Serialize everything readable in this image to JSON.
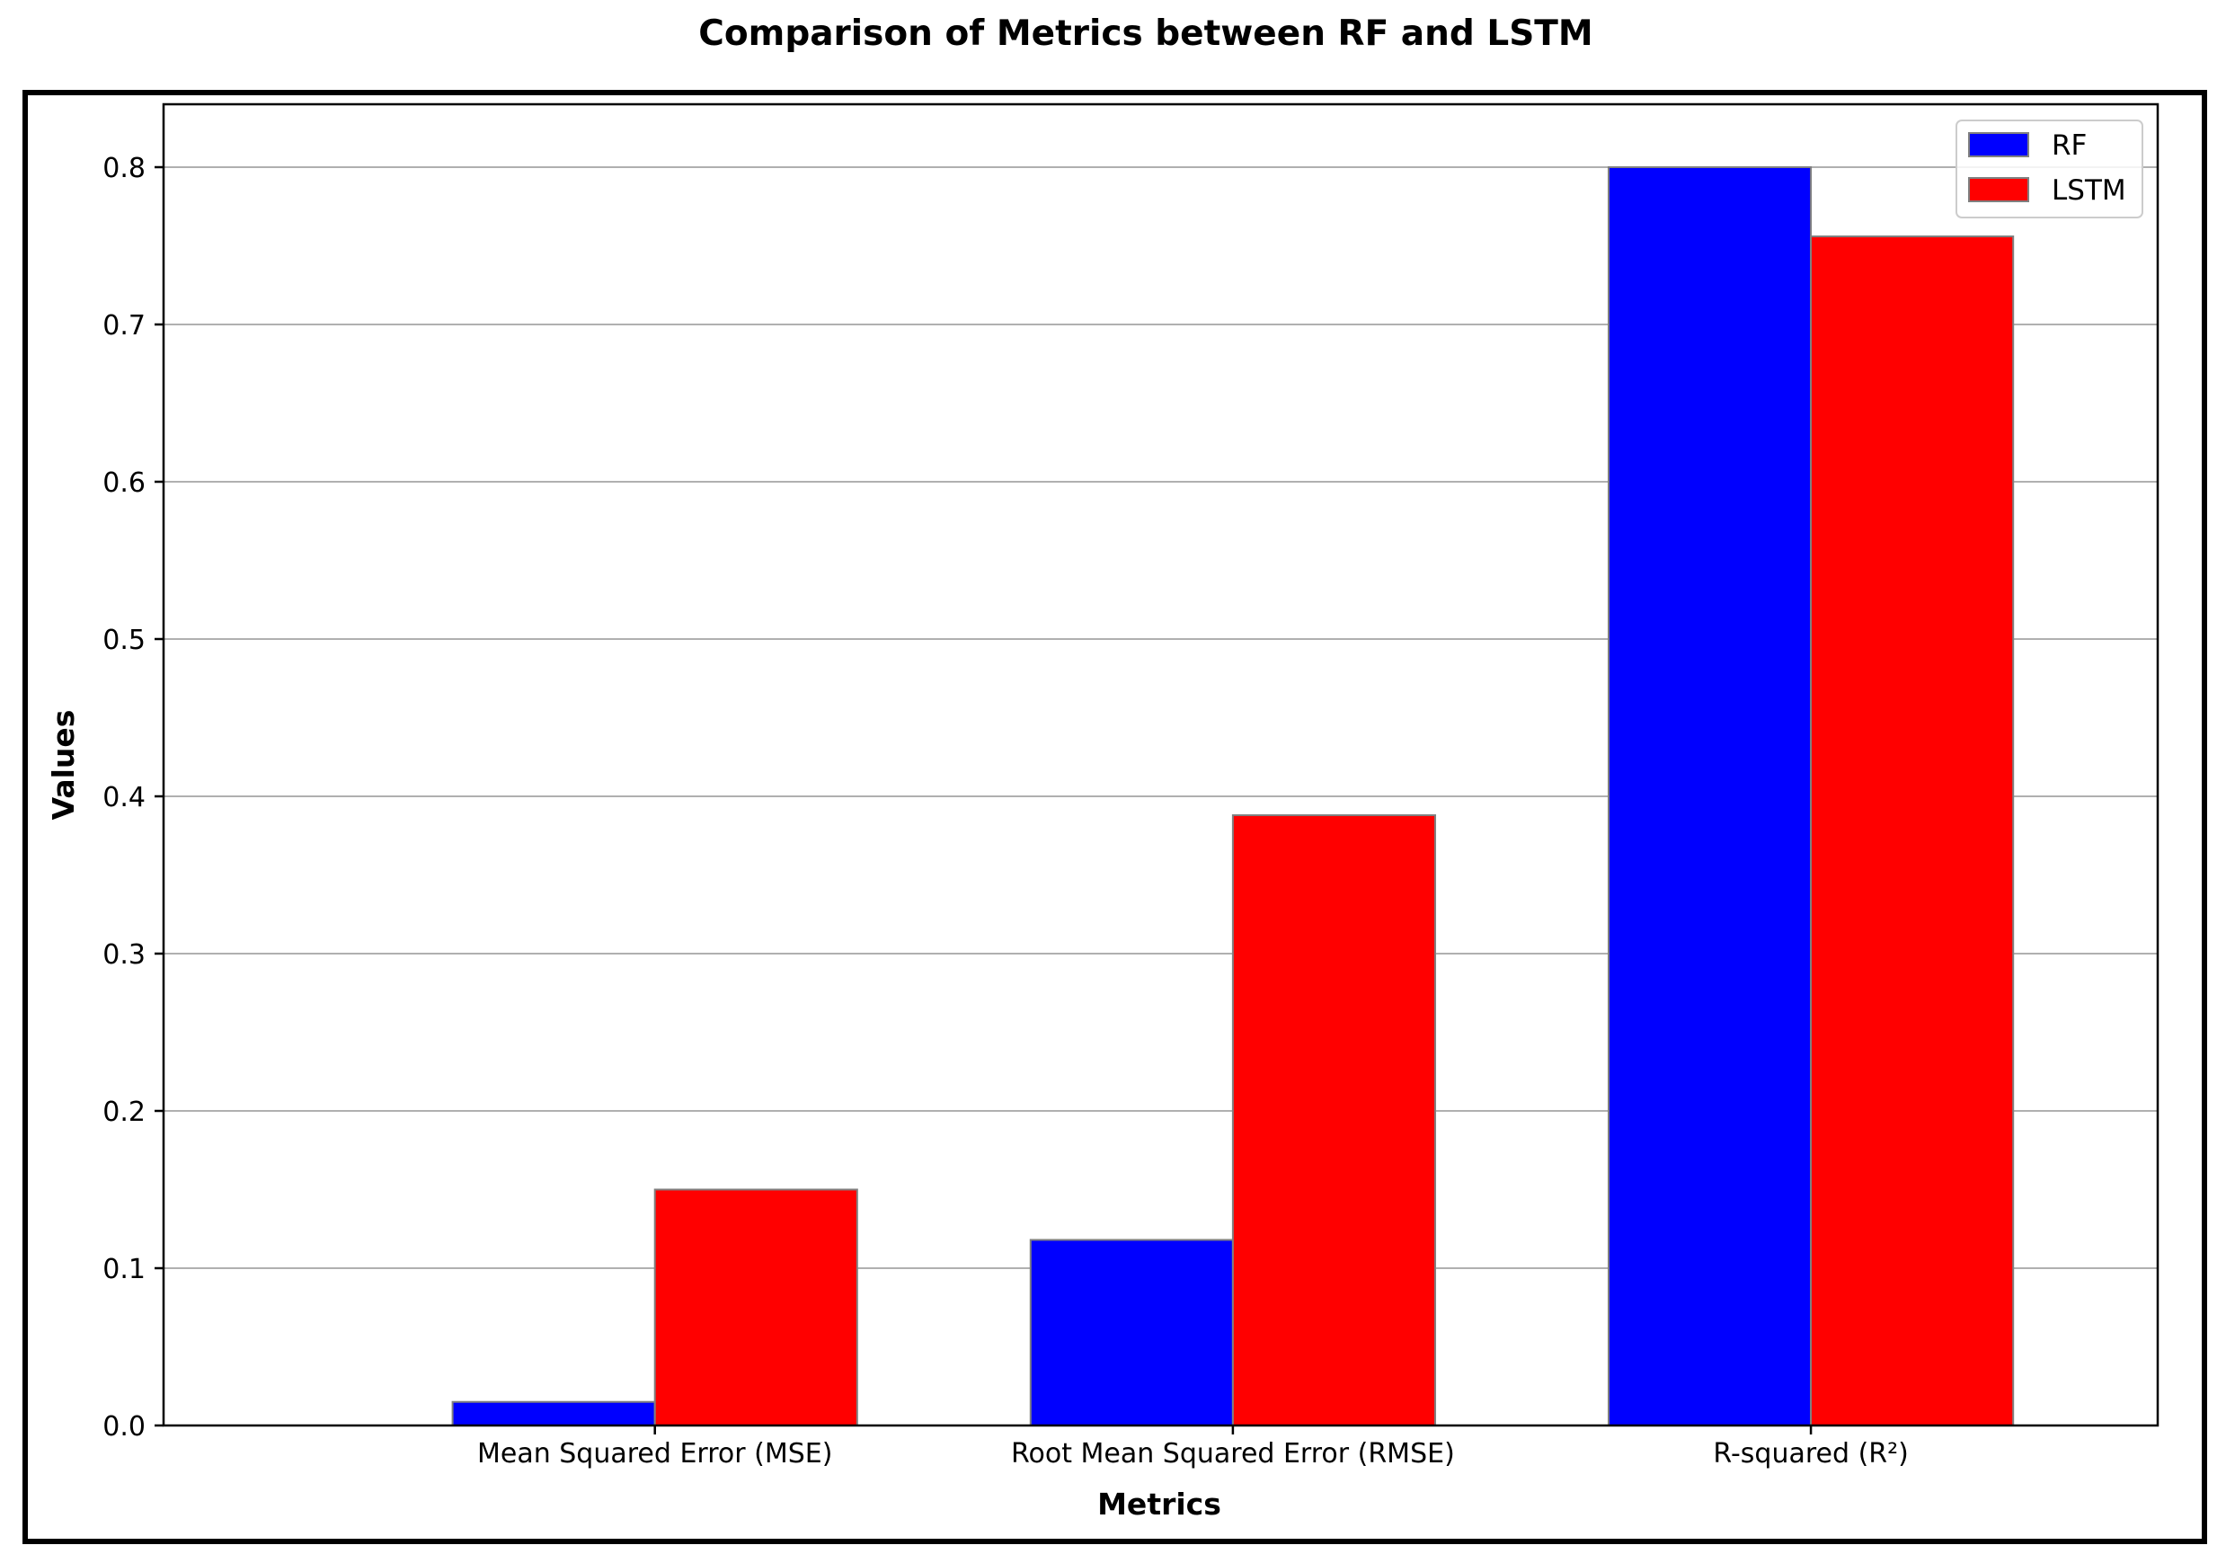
{
  "chart_data": {
    "type": "bar",
    "title": "Comparison of Metrics between RF and LSTM",
    "xlabel": "Metrics",
    "ylabel": "Values",
    "categories": [
      "Mean Squared Error (MSE)",
      "Root Mean Squared Error (RMSE)",
      "R-squared (R²)"
    ],
    "series": [
      {
        "name": "RF",
        "color": "#0000ff",
        "values": [
          0.015,
          0.118,
          0.8
        ]
      },
      {
        "name": "LSTM",
        "color": "#ff0000",
        "values": [
          0.15,
          0.388,
          0.756
        ]
      }
    ],
    "ylim": [
      0,
      0.84
    ],
    "yticks": [
      "0.0",
      "0.1",
      "0.2",
      "0.3",
      "0.4",
      "0.5",
      "0.6",
      "0.7",
      "0.8"
    ],
    "grid": "horizontal",
    "legend_position": "top-right",
    "bar_edge_color": "#808080"
  }
}
